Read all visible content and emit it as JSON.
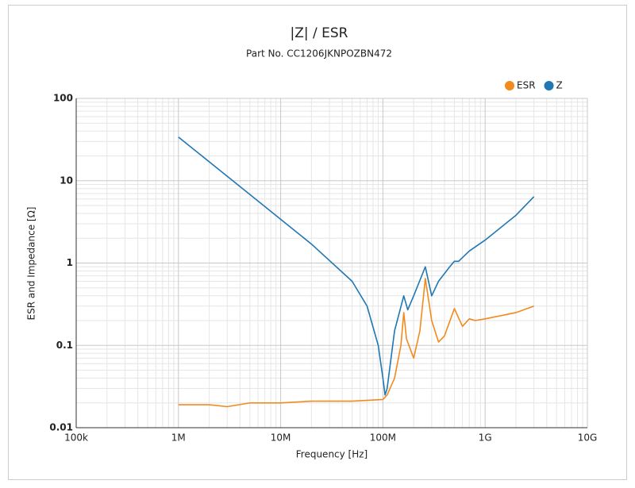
{
  "chart_data": {
    "type": "line",
    "title": "|Z|  / ESR",
    "subtitle": "Part No. CC1206JKNPOZBN472",
    "x_label": "Frequency [Hz]",
    "y_label": "ESR and Impedance [Ω]",
    "log_x": true,
    "log_y": true,
    "grid": true,
    "legend": "top-right",
    "xlim": [
      100000,
      10000000000
    ],
    "xticks": [
      {
        "value": 100000,
        "label": "100k"
      },
      {
        "value": 1000000,
        "label": "1M"
      },
      {
        "value": 10000000,
        "label": "10M"
      },
      {
        "value": 100000000,
        "label": "100M"
      },
      {
        "value": 1000000000,
        "label": "1G"
      },
      {
        "value": 10000000000,
        "label": "10G"
      }
    ],
    "ylim": [
      0.01,
      100
    ],
    "yticks": [
      0.01,
      0.1,
      1,
      10,
      100
    ],
    "series": [
      {
        "name": "ESR",
        "color": "#f28a1e",
        "x": [
          1000000,
          2000000,
          3000000,
          5000000,
          10000000,
          20000000,
          50000000,
          100000000,
          110000000,
          130000000,
          150000000,
          160000000,
          170000000,
          200000000,
          230000000,
          260000000,
          300000000,
          350000000,
          400000000,
          500000000,
          600000000,
          700000000,
          800000000,
          1000000000,
          2000000000,
          3000000000
        ],
        "values": [
          0.019,
          0.019,
          0.018,
          0.02,
          0.02,
          0.021,
          0.021,
          0.022,
          0.025,
          0.04,
          0.1,
          0.25,
          0.12,
          0.07,
          0.15,
          0.65,
          0.2,
          0.11,
          0.13,
          0.28,
          0.17,
          0.21,
          0.2,
          0.21,
          0.25,
          0.3
        ]
      },
      {
        "name": "Z",
        "color": "#1f77b4",
        "x": [
          1000000,
          2000000,
          5000000,
          10000000,
          20000000,
          50000000,
          70000000,
          90000000,
          100000000,
          105000000,
          110000000,
          130000000,
          160000000,
          175000000,
          200000000,
          260000000,
          300000000,
          350000000,
          450000000,
          500000000,
          550000000,
          700000000,
          1000000000,
          2000000000,
          3000000000
        ],
        "values": [
          33.9,
          17,
          6.8,
          3.4,
          1.7,
          0.6,
          0.3,
          0.1,
          0.04,
          0.025,
          0.03,
          0.15,
          0.4,
          0.27,
          0.4,
          0.9,
          0.4,
          0.6,
          0.9,
          1.05,
          1.05,
          1.4,
          1.9,
          3.8,
          6.4
        ]
      }
    ]
  }
}
